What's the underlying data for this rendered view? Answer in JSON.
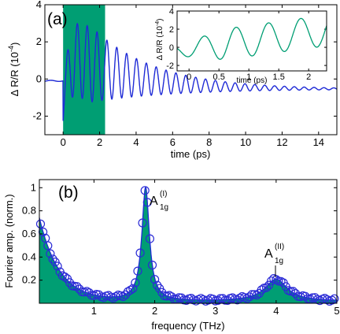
{
  "chart_data": [
    {
      "type": "line",
      "panel_label": "(a)",
      "xlabel": "time (ps)",
      "ylabel": "Δ R/R (10",
      "ylabel_exp": "-4",
      "ylabel_close": ")",
      "xlim": [
        -1,
        15
      ],
      "ylim": [
        -3,
        4
      ],
      "xticks": [
        "0",
        "2",
        "4",
        "6",
        "8",
        "10",
        "12",
        "14"
      ],
      "yticks": [
        "-2",
        "0",
        "2",
        "4"
      ],
      "shaded_region": {
        "x0": 0,
        "x1": 2.3,
        "color": "#009e73"
      },
      "series_color": "#1f2bd6",
      "signal_model": {
        "before_zero": -0.1,
        "drop_at_zero": -2.3,
        "peak": 3.2,
        "oscillation_frequency_thz": 1.85,
        "decay_amplitude_at_15ps": -0.65
      },
      "inset": {
        "xlabel": "time (ps)",
        "ylabel": "Δ R/R (10",
        "ylabel_exp": "-4",
        "ylabel_close": ")",
        "xlim": [
          -0.2,
          2.3
        ],
        "ylim": [
          -2.6,
          4
        ],
        "xticks": [
          "0",
          "0.5",
          "1",
          "1.5",
          "2"
        ],
        "yticks": [
          "-2",
          "0",
          "2",
          "4"
        ],
        "series_color": "#009e73"
      }
    },
    {
      "type": "line",
      "panel_label": "(b)",
      "xlabel": "frequency (THz)",
      "ylabel": "Fourier amp. (norm.)",
      "xlim": [
        0.1,
        5
      ],
      "ylim": [
        0,
        1.07
      ],
      "xticks": [
        "1",
        "2",
        "3",
        "4",
        "5"
      ],
      "yticks": [
        "0.2",
        "0.4",
        "0.6",
        "0.8",
        "1"
      ],
      "fill_color": "#009e73",
      "marker_color": "#2b2bd6",
      "line_color": "#1f2bd6",
      "peaks": [
        {
          "label": "A",
          "sup": "(I)",
          "sub": "1g",
          "frequency": 1.85,
          "amplitude": 1.0
        },
        {
          "label": "A",
          "sup": "(II)",
          "sub": "1g",
          "frequency": 4.0,
          "amplitude": 0.22
        }
      ],
      "low_frequency_start": 0.72
    }
  ]
}
